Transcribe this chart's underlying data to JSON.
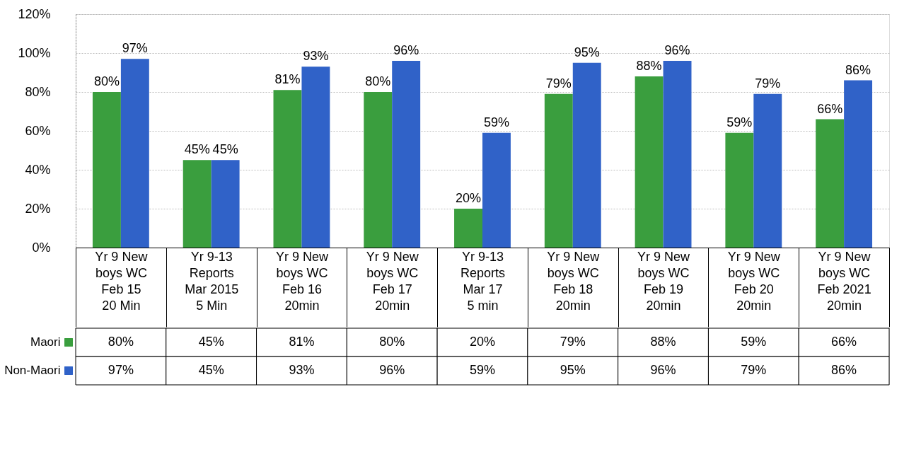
{
  "chart_data": {
    "type": "bar",
    "categories": [
      "Yr 9 New\nboys WC\nFeb 15\n20 Min",
      "Yr 9-13\nReports\nMar 2015\n5 Min",
      "Yr 9 New\nboys WC\nFeb 16\n20min",
      "Yr 9 New\nboys WC\nFeb 17\n20min",
      "Yr 9-13\nReports\nMar 17\n5 min",
      "Yr 9 New\nboys WC\nFeb 18\n20min",
      "Yr 9 New\nboys WC\nFeb 19\n20min",
      "Yr 9 New\nboys WC\nFeb 20\n20min",
      "Yr 9 New\nboys WC\nFeb 2021\n20min"
    ],
    "series": [
      {
        "name": "Maori",
        "color": "#3a9e3e",
        "values": [
          80,
          45,
          81,
          80,
          20,
          79,
          88,
          59,
          66
        ],
        "value_labels": [
          "80%",
          "45%",
          "81%",
          "80%",
          "20%",
          "79%",
          "88%",
          "59%",
          "66%"
        ]
      },
      {
        "name": "Non-Maori",
        "color": "#3062c8",
        "values": [
          97,
          45,
          93,
          96,
          59,
          95,
          96,
          79,
          86
        ],
        "value_labels": [
          "97%",
          "45%",
          "93%",
          "96%",
          "59%",
          "95%",
          "96%",
          "79%",
          "86%"
        ]
      }
    ],
    "ylim": [
      0,
      120
    ],
    "yticks": [
      {
        "value": 0,
        "label": "0%"
      },
      {
        "value": 20,
        "label": "20%"
      },
      {
        "value": 40,
        "label": "40%"
      },
      {
        "value": 60,
        "label": "60%"
      },
      {
        "value": 80,
        "label": "80%"
      },
      {
        "value": 100,
        "label": "100%"
      },
      {
        "value": 120,
        "label": "120%"
      }
    ],
    "grid": "y",
    "legend": "bottom left"
  }
}
